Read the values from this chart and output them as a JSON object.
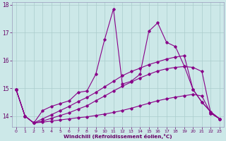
{
  "xlabel": "Windchill (Refroidissement éolien,°C)",
  "background_color": "#cce8e8",
  "line_color": "#880088",
  "grid_color": "#aacccc",
  "xlim": [
    -0.5,
    23.5
  ],
  "ylim": [
    13.6,
    18.1
  ],
  "yticks": [
    14,
    15,
    16,
    17,
    18
  ],
  "xticks": [
    0,
    1,
    2,
    3,
    4,
    5,
    6,
    7,
    8,
    9,
    10,
    11,
    12,
    13,
    14,
    15,
    16,
    17,
    18,
    19,
    20,
    21,
    22,
    23
  ],
  "series": [
    [
      14.95,
      14.0,
      13.75,
      14.2,
      14.35,
      14.45,
      14.55,
      14.85,
      14.9,
      15.5,
      16.75,
      17.85,
      15.15,
      15.25,
      15.5,
      17.05,
      17.35,
      16.65,
      16.5,
      15.8,
      14.95,
      14.5,
      14.15,
      13.9
    ],
    [
      14.95,
      14.0,
      13.75,
      13.78,
      13.82,
      13.86,
      13.9,
      13.94,
      13.97,
      14.02,
      14.07,
      14.13,
      14.2,
      14.28,
      14.37,
      14.46,
      14.55,
      14.62,
      14.68,
      14.73,
      14.78,
      14.72,
      14.1,
      13.9
    ],
    [
      14.95,
      14.0,
      13.75,
      13.82,
      13.92,
      14.02,
      14.12,
      14.25,
      14.37,
      14.55,
      14.72,
      14.9,
      15.07,
      15.22,
      15.37,
      15.5,
      15.62,
      15.7,
      15.75,
      15.78,
      15.75,
      15.6,
      14.1,
      13.9
    ],
    [
      14.95,
      14.0,
      13.75,
      13.9,
      14.05,
      14.2,
      14.35,
      14.52,
      14.67,
      14.85,
      15.05,
      15.25,
      15.45,
      15.6,
      15.72,
      15.85,
      15.95,
      16.05,
      16.12,
      16.17,
      14.95,
      14.5,
      14.15,
      13.9
    ]
  ]
}
